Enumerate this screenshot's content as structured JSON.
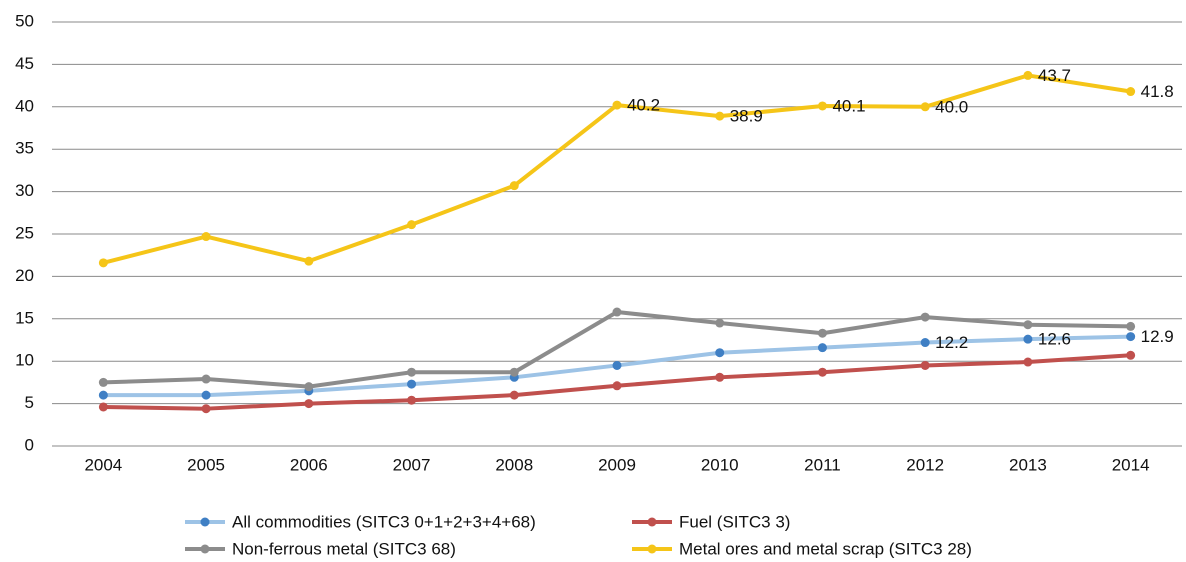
{
  "chart_data": {
    "type": "line",
    "categories": [
      "2004",
      "2005",
      "2006",
      "2007",
      "2008",
      "2009",
      "2010",
      "2011",
      "2012",
      "2013",
      "2014"
    ],
    "ylim": [
      0,
      50
    ],
    "yticks": [
      0,
      5,
      10,
      15,
      20,
      25,
      30,
      35,
      40,
      45,
      50
    ],
    "grid": true,
    "series": [
      {
        "name": "All commodities (SITC3 0+1+2+3+4+68)",
        "color": "#9dc3e6",
        "marker_color": "#3f7fc4",
        "values": [
          6.0,
          6.0,
          6.5,
          7.3,
          8.1,
          9.5,
          11.0,
          11.6,
          12.2,
          12.6,
          12.9
        ],
        "value_labels": [
          null,
          null,
          null,
          null,
          null,
          null,
          null,
          null,
          "12.2",
          "12.6",
          "12.9"
        ]
      },
      {
        "name": "Fuel (SITC3 3)",
        "color": "#c0504d",
        "marker_color": "#c0504d",
        "values": [
          4.6,
          4.4,
          5.0,
          5.4,
          6.0,
          7.1,
          8.1,
          8.7,
          9.5,
          9.9,
          10.7
        ]
      },
      {
        "name": "Non-ferrous metal (SITC3 68)",
        "color": "#8c8c8c",
        "marker_color": "#8c8c8c",
        "values": [
          7.5,
          7.9,
          7.0,
          8.7,
          8.7,
          15.8,
          14.5,
          13.3,
          15.2,
          14.3,
          14.1
        ]
      },
      {
        "name": "Metal ores and metal scrap  (SITC3 28)",
        "color": "#f5c518",
        "marker_color": "#f5c518",
        "values": [
          21.6,
          24.7,
          21.8,
          26.1,
          30.7,
          40.2,
          38.9,
          40.1,
          40.0,
          43.7,
          41.8
        ],
        "value_labels": [
          null,
          null,
          null,
          null,
          null,
          "40.2",
          "38.9",
          "40.1",
          "40.0",
          "43.7",
          "41.8"
        ]
      }
    ]
  }
}
